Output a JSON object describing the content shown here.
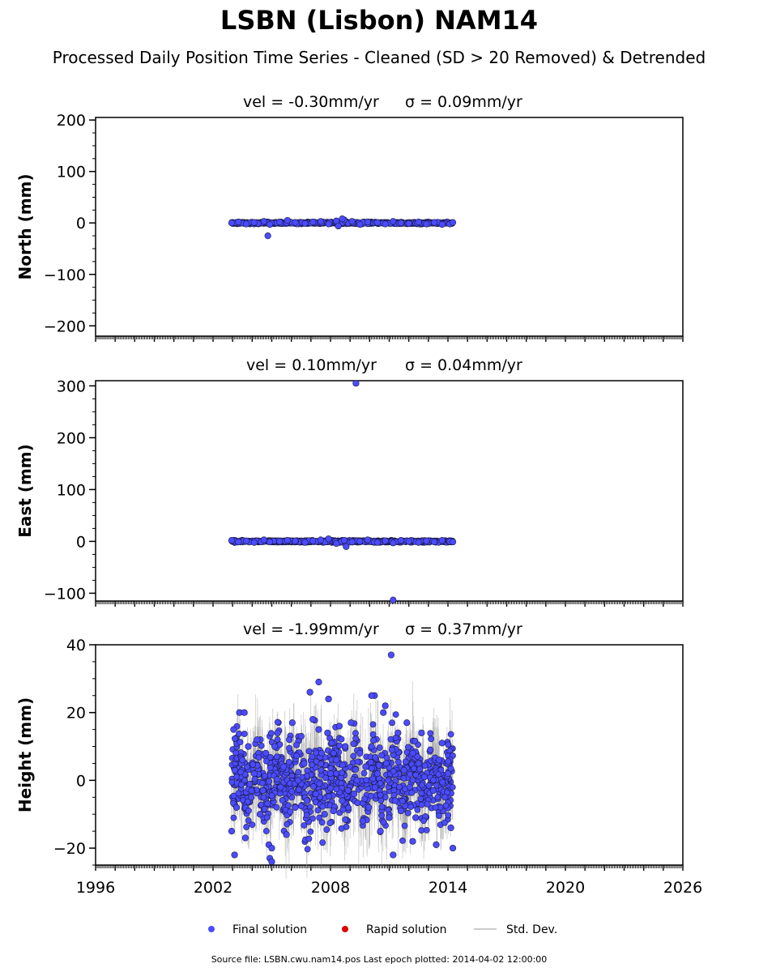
{
  "title": "LSBN (Lisbon) NAM14",
  "subtitle": "Processed Daily Position Time Series - Cleaned (SD > 20 Removed) & Detrended",
  "legend": {
    "final": "Final solution",
    "rapid": "Rapid solution",
    "stddev": "Std. Dev."
  },
  "source_note": "Source file: LSBN.cwu.nam14.pos  Last epoch plotted: 2014-04-02 12:00:00",
  "colors": {
    "final": "#4b4bff",
    "rapid": "#e00000",
    "stddev": "#bbbbbb",
    "edge": "#1a1a40"
  },
  "chart_data": [
    {
      "type": "scatter",
      "vel_label": "vel = -0.30mm/yr",
      "sigma_label": "σ = 0.09mm/yr",
      "ylabel": "North (mm)",
      "xlim": [
        1996,
        2026
      ],
      "ylim": [
        -220,
        205
      ],
      "yticks": [
        -200,
        -100,
        0,
        100,
        200
      ],
      "yticklabels": [
        "−200",
        "−100",
        "0",
        "100",
        "200"
      ],
      "data_span": [
        2002.95,
        2014.25
      ],
      "series": [
        {
          "values_description_free": true,
          "x": [
            2002.95,
            2003.3,
            2003.7,
            2004.1,
            2004.6,
            2004.9,
            2005.4,
            2005.8,
            2006.2,
            2006.7,
            2007.1,
            2007.5,
            2007.9,
            2008.3,
            2008.7,
            2009.1,
            2009.5,
            2009.9,
            2010.4,
            2010.8,
            2011.2,
            2011.6,
            2012.0,
            2012.5,
            2012.9,
            2013.3,
            2013.7,
            2014.1,
            2014.25,
            2004.8,
            2008.4,
            2008.6
          ],
          "y": [
            0,
            2,
            -2,
            1,
            3,
            -3,
            2,
            5,
            1,
            -1,
            2,
            3,
            -2,
            4,
            6,
            3,
            -3,
            2,
            1,
            -2,
            3,
            0,
            -1,
            2,
            -2,
            1,
            -3,
            -2,
            1,
            -25,
            -6,
            8
          ]
        }
      ]
    },
    {
      "type": "scatter",
      "vel_label": "vel = 0.10mm/yr",
      "sigma_label": "σ = 0.04mm/yr",
      "ylabel": "East (mm)",
      "xlim": [
        1996,
        2026
      ],
      "ylim": [
        -115,
        310
      ],
      "yticks": [
        -100,
        0,
        100,
        200,
        300
      ],
      "yticklabels": [
        "−100",
        "0",
        "100",
        "200",
        "300"
      ],
      "data_span": [
        2002.95,
        2014.25
      ],
      "series": [
        {
          "x": [
            2002.95,
            2003.3,
            2003.7,
            2004.1,
            2004.6,
            2004.9,
            2005.4,
            2005.8,
            2006.2,
            2006.7,
            2007.1,
            2007.5,
            2007.9,
            2008.3,
            2008.7,
            2009.1,
            2009.5,
            2009.9,
            2010.4,
            2010.8,
            2011.2,
            2011.6,
            2012.0,
            2012.5,
            2012.9,
            2013.3,
            2013.7,
            2014.1,
            2014.25,
            2009.3,
            2011.2,
            2008.8
          ],
          "y": [
            2,
            -1,
            1,
            -2,
            3,
            -1,
            0,
            2,
            1,
            -2,
            1,
            3,
            5,
            -4,
            2,
            -1,
            0,
            3,
            -2,
            1,
            -3,
            2,
            0,
            -2,
            1,
            -1,
            2,
            0,
            -1,
            305,
            -113,
            -10
          ]
        }
      ]
    },
    {
      "type": "scatter",
      "vel_label": "vel = -1.99mm/yr",
      "sigma_label": "σ = 0.37mm/yr",
      "ylabel": "Height (mm)",
      "xlim": [
        1996,
        2026
      ],
      "ylim": [
        -25,
        40
      ],
      "yticks": [
        -20,
        0,
        20,
        40
      ],
      "yticklabels": [
        "−20",
        "0",
        "20",
        "40"
      ],
      "xticks": [
        1996,
        2002,
        2008,
        2014,
        2020,
        2026
      ],
      "data_span": [
        2002.95,
        2014.25
      ],
      "series": [
        {
          "x": [
            2002.95,
            2003.05,
            2003.2,
            2003.35,
            2003.5,
            2003.65,
            2003.8,
            2003.95,
            2004.1,
            2004.25,
            2004.4,
            2004.55,
            2004.7,
            2004.85,
            2005.0,
            2005.15,
            2005.3,
            2005.45,
            2005.6,
            2005.75,
            2005.9,
            2006.05,
            2006.2,
            2006.35,
            2006.5,
            2006.65,
            2006.8,
            2006.95,
            2007.1,
            2007.25,
            2007.4,
            2007.55,
            2007.7,
            2007.85,
            2008.0,
            2008.15,
            2008.3,
            2008.45,
            2008.6,
            2008.75,
            2008.9,
            2009.05,
            2009.2,
            2009.35,
            2009.5,
            2009.65,
            2009.8,
            2009.95,
            2010.1,
            2010.25,
            2010.4,
            2010.55,
            2010.7,
            2010.85,
            2011.0,
            2011.15,
            2011.3,
            2011.45,
            2011.6,
            2011.75,
            2011.9,
            2012.05,
            2012.2,
            2012.35,
            2012.5,
            2012.65,
            2012.8,
            2012.95,
            2013.1,
            2013.25,
            2013.4,
            2013.55,
            2013.7,
            2013.85,
            2014.0,
            2014.15,
            2014.25,
            2003.1,
            2003.6,
            2004.9,
            2005.0,
            2007.4,
            2007.9,
            2010.1,
            2010.8,
            2011.2,
            2011.1,
            2012.2
          ],
          "y": [
            -15,
            15,
            -8,
            20,
            6,
            -17,
            10,
            -5,
            2,
            12,
            -10,
            -3,
            8,
            -19,
            -20,
            10,
            14,
            -2,
            4,
            -16,
            12,
            17,
            -8,
            0,
            13,
            5,
            -6,
            26,
            18,
            -4,
            15,
            8,
            -10,
            14,
            2,
            -9,
            6,
            16,
            -6,
            10,
            -3,
            17,
            -4,
            0,
            8,
            -12,
            4,
            -8,
            10,
            25,
            2,
            -15,
            20,
            5,
            -11,
            9,
            -6,
            14,
            -9,
            3,
            17,
            -2,
            8,
            -11,
            5,
            14,
            1,
            -7,
            9,
            -3,
            -19,
            6,
            11,
            -5,
            2,
            -14,
            -20,
            -22,
            20,
            -23,
            -24,
            29,
            24,
            25,
            22,
            -22,
            37,
            -18
          ]
        }
      ]
    }
  ]
}
